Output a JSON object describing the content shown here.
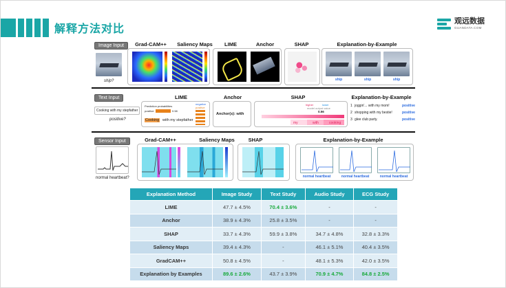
{
  "slide": {
    "title": "解释方法对比",
    "logo": {
      "main": "观远数据",
      "sub": "GUANDATA.COM"
    }
  },
  "image_row": {
    "tag": "Image Input",
    "caption": "ship?",
    "headers": [
      "Grad-CAM++",
      "Saliency Maps",
      "LIME",
      "Anchor",
      "SHAP",
      "Explanation-by-Example"
    ],
    "example_labels": [
      "ship",
      "ship",
      "ship"
    ]
  },
  "text_row": {
    "tag": "Text Input",
    "sentence": "Cooking with my stepfather",
    "question": "positive?",
    "headers": [
      "LIME",
      "Anchor",
      "SHAP",
      "Explanation-by-Example"
    ],
    "lime": {
      "legend_neg": "negative",
      "legend_pos": "positive",
      "prob_title": "Prediction probabilities",
      "class_label": "positive",
      "prob_value": "0.58",
      "highlight_word": "Cooking",
      "rest_text": "with my stepfather"
    },
    "anchor_text": "Anchor(s): with",
    "shap": {
      "higher": "higher",
      "lower": "lower",
      "output_label": "model output value",
      "output_value": "0.56",
      "tokens": [
        "my",
        "with",
        "cooking"
      ]
    },
    "examples": [
      {
        "num": "1",
        "text": "joggin'... with my mom!",
        "label": "positive"
      },
      {
        "num": "2",
        "text": "shopping with my bestie!",
        "label": "positive"
      },
      {
        "num": "3",
        "text": "glee club party.",
        "label": "positive"
      }
    ]
  },
  "sensor_row": {
    "tag": "Sensor Input",
    "caption": "normal heartbeat?",
    "headers": [
      "Grad-CAM++",
      "Saliency Maps",
      "SHAP",
      "Explanation-by-Example"
    ],
    "example_labels": [
      "normal heartbeat",
      "normal heartbeat",
      "normal heartbeat"
    ]
  },
  "table": {
    "columns": [
      "Explanation Method",
      "Image Study",
      "Text Study",
      "Audio Study",
      "ECG Study"
    ],
    "rows": [
      {
        "method": "LIME",
        "image": "47.7 ± 4.5%",
        "text": "70.4 ± 3.6%",
        "audio": "-",
        "ecg": "-"
      },
      {
        "method": "Anchor",
        "image": "38.9 ± 4.3%",
        "text": "25.8 ± 3.5%",
        "audio": "-",
        "ecg": "-"
      },
      {
        "method": "SHAP",
        "image": "33.7 ± 4.3%",
        "text": "59.9 ± 3.8%",
        "audio": "34.7 ± 4.8%",
        "ecg": "32.8 ± 3.3%"
      },
      {
        "method": "Saliency Maps",
        "image": "39.4 ± 4.3%",
        "text": "-",
        "audio": "46.1 ± 5.1%",
        "ecg": "40.4 ± 3.5%"
      },
      {
        "method": "GradCAM++",
        "image": "50.8 ± 4.5%",
        "text": "-",
        "audio": "48.1 ± 5.3%",
        "ecg": "42.0 ± 3.5%"
      },
      {
        "method": "Explanation by Examples",
        "image": "89.6 ± 2.6%",
        "text": "43.7 ± 3.9%",
        "audio": "70.9 ± 4.7%",
        "ecg": "84.8 ± 2.5%"
      }
    ]
  },
  "colors": {
    "accent": "#1aa6a6",
    "table_header": "#24a6b7",
    "best": "#18a93a",
    "link": "#2a6adf"
  }
}
